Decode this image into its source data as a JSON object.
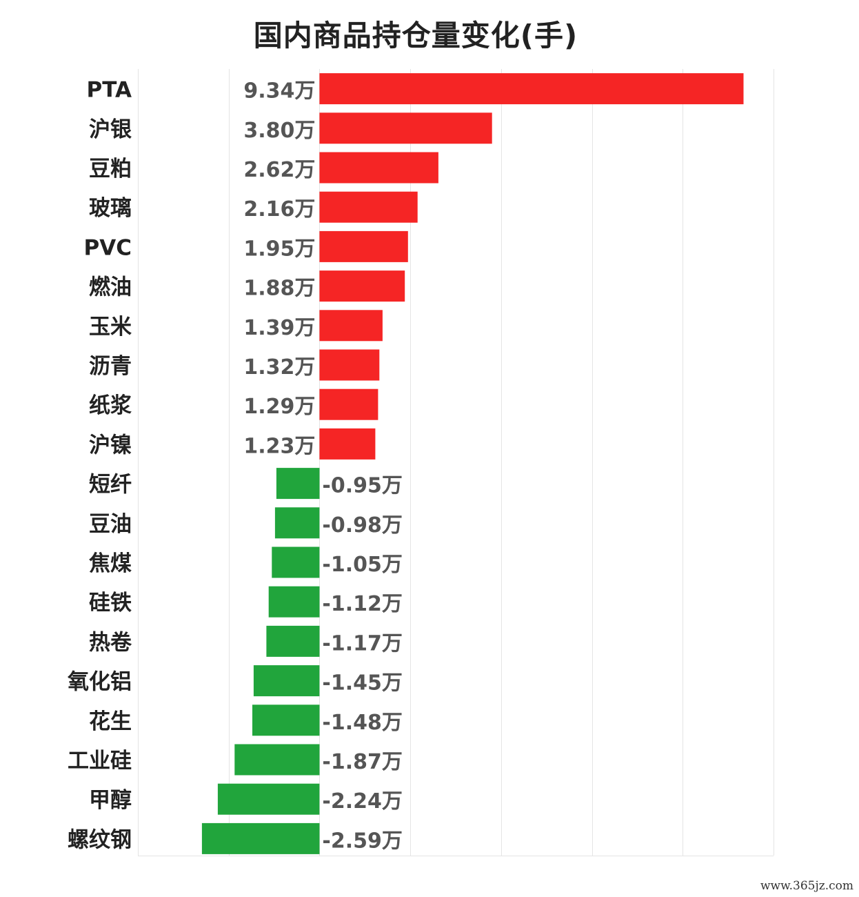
{
  "chart_data": {
    "type": "bar",
    "orientation": "horizontal",
    "title": "国内商品持仓量变化(手)",
    "unit_suffix": "万",
    "categories": [
      "PTA",
      "沪银",
      "豆粕",
      "玻璃",
      "PVC",
      "燃油",
      "玉米",
      "沥青",
      "纸浆",
      "沪镍",
      "短纤",
      "豆油",
      "焦煤",
      "硅铁",
      "热卷",
      "氧化铝",
      "花生",
      "工业硅",
      "甲醇",
      "螺纹钢"
    ],
    "values": [
      9.34,
      3.8,
      2.62,
      2.16,
      1.95,
      1.88,
      1.39,
      1.32,
      1.29,
      1.23,
      -0.95,
      -0.98,
      -1.05,
      -1.12,
      -1.17,
      -1.45,
      -1.48,
      -1.87,
      -2.24,
      -2.59
    ],
    "value_labels": [
      "9.34万",
      "3.80万",
      "2.62万",
      "2.16万",
      "1.95万",
      "1.88万",
      "1.39万",
      "1.32万",
      "1.29万",
      "1.23万",
      "-0.95万",
      "-0.98万",
      "-1.05万",
      "-1.12万",
      "-1.17万",
      "-1.45万",
      "-1.48万",
      "-1.87万",
      "-2.24万",
      "-2.59万"
    ],
    "xlim": [
      -4,
      10
    ],
    "grid_step": 2,
    "grid": true,
    "colors": {
      "positive": "#f52525",
      "negative": "#21a53c",
      "grid": "#e4e4e4",
      "label": "#555555",
      "category": "#222222"
    }
  },
  "watermark": "www.365jz.com"
}
